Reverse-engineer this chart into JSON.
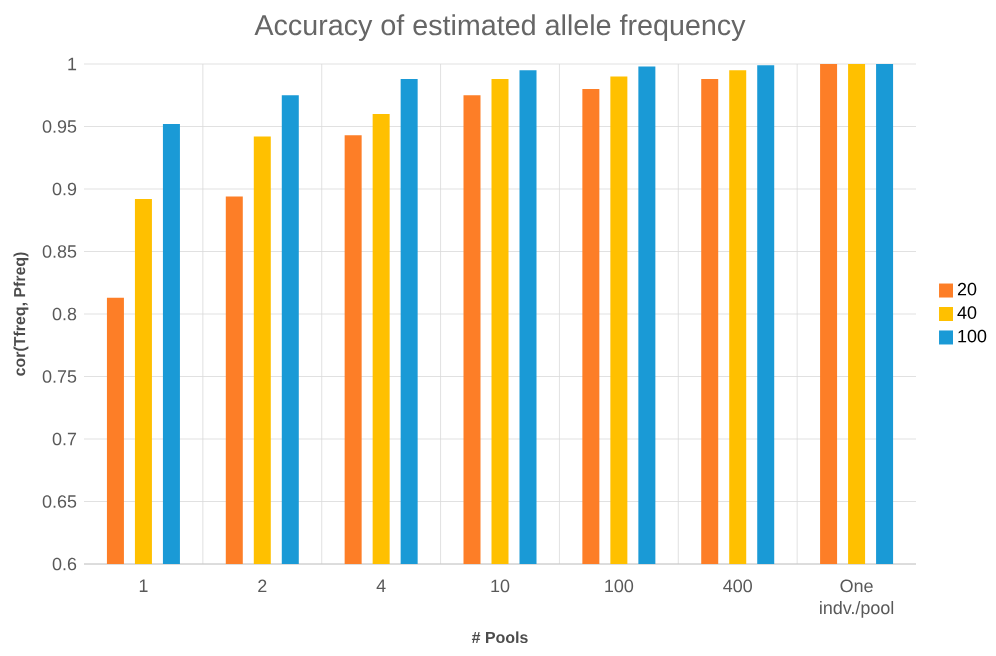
{
  "chart_data": {
    "type": "bar",
    "title": "Accuracy of estimated allele frequency",
    "xlabel": "# Pools",
    "ylabel": "cor(Tfreq, Pfreq)",
    "categories": [
      "1",
      "2",
      "4",
      "10",
      "100",
      "400",
      "One indv./pool"
    ],
    "series": [
      {
        "name": "20",
        "color": "#fd7e27",
        "values": [
          0.813,
          0.894,
          0.943,
          0.975,
          0.98,
          0.988,
          1.0
        ]
      },
      {
        "name": "40",
        "color": "#ffc000",
        "values": [
          0.892,
          0.942,
          0.96,
          0.988,
          0.99,
          0.995,
          1.0
        ]
      },
      {
        "name": "100",
        "color": "#1a9ad6",
        "values": [
          0.952,
          0.975,
          0.988,
          0.995,
          0.998,
          0.999,
          1.0
        ]
      }
    ],
    "ylim": [
      0.6,
      1
    ],
    "yticks": [
      0.6,
      0.65,
      0.7,
      0.75,
      0.8,
      0.85,
      0.9,
      0.95,
      1
    ],
    "grid": true,
    "legend": "right"
  }
}
